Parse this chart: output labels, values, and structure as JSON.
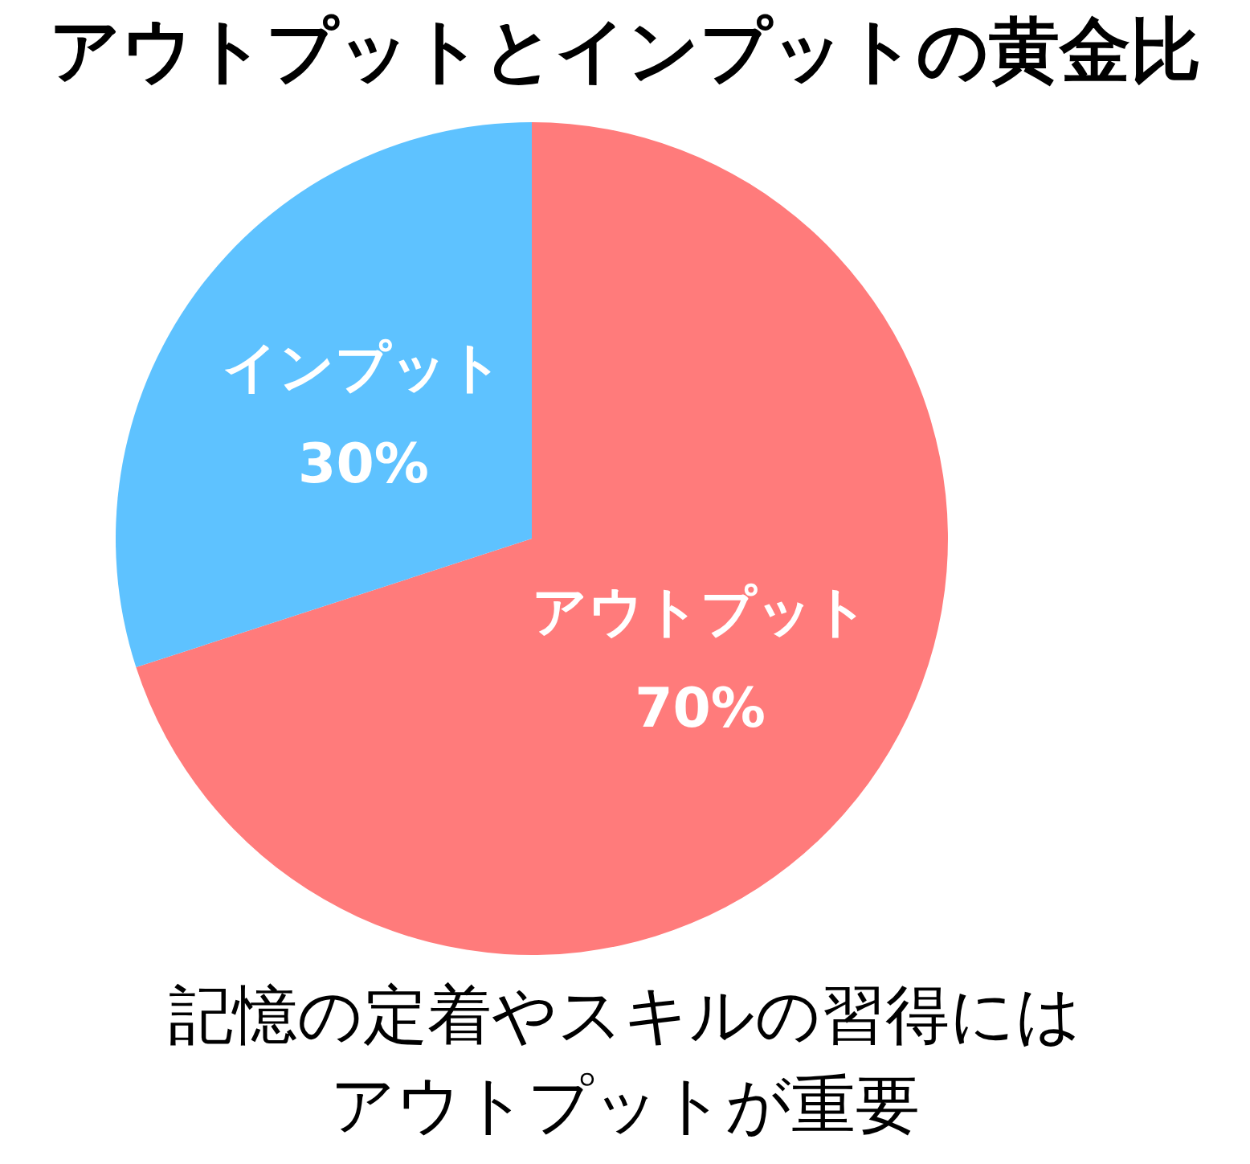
{
  "chart_data": {
    "type": "pie",
    "title": "アウトプットとインプットの黄金比",
    "categories": [
      "アウトプット",
      "インプット"
    ],
    "values": [
      70,
      30
    ],
    "value_labels": [
      "70%",
      "30%"
    ],
    "colors": [
      "#ff7b7b",
      "#5ec2ff"
    ],
    "annotations": [
      "記憶の定着やスキルの習得には",
      "アウトプットが重要"
    ]
  }
}
